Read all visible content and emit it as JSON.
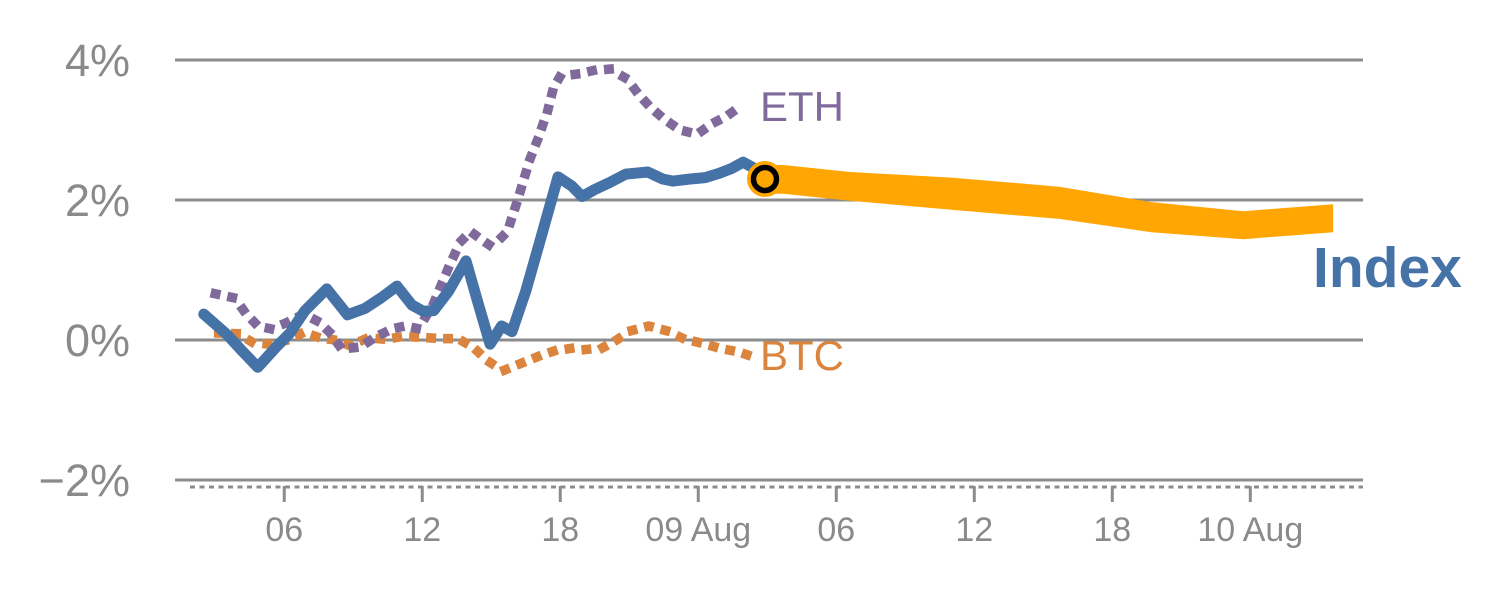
{
  "chart_data": {
    "type": "line",
    "title": "",
    "xlabel": "",
    "ylabel": "",
    "x_axis": {
      "unit": "hours since 08 Aug 00:00",
      "range": [
        1.25,
        52.9
      ],
      "axis_style": "dashed",
      "ticks": [
        {
          "t": 6,
          "label": "06"
        },
        {
          "t": 12,
          "label": "12"
        },
        {
          "t": 18,
          "label": "18"
        },
        {
          "t": 24,
          "label": "09 Aug"
        },
        {
          "t": 30,
          "label": "06"
        },
        {
          "t": 36,
          "label": "12"
        },
        {
          "t": 42,
          "label": "18"
        },
        {
          "t": 48,
          "label": "10 Aug"
        }
      ]
    },
    "y_axis": {
      "unit": "%",
      "gridlines": [
        4,
        2,
        0,
        -2
      ],
      "tick_labels": [
        "4%",
        "2%",
        "0%",
        "−2%"
      ],
      "ylim": [
        -2.3,
        4.3
      ]
    },
    "legend_position": "inline-labels",
    "grid": true,
    "series": [
      {
        "name": "BTC",
        "label": "BTC",
        "color": "#DB843D",
        "style": "dotted",
        "points": [
          [
            3.15,
            0.1
          ],
          [
            4.0,
            0.09
          ],
          [
            4.65,
            -0.04
          ],
          [
            5.4,
            -0.06
          ],
          [
            6.15,
            0.0
          ],
          [
            6.85,
            0.11
          ],
          [
            7.55,
            0.03
          ],
          [
            8.2,
            0.0
          ],
          [
            8.85,
            -0.08
          ],
          [
            9.65,
            0.03
          ],
          [
            10.4,
            0.01
          ],
          [
            11.15,
            0.05
          ],
          [
            11.9,
            0.04
          ],
          [
            12.8,
            0.02
          ],
          [
            13.55,
            0.02
          ],
          [
            14.2,
            -0.1
          ],
          [
            14.85,
            -0.3
          ],
          [
            15.5,
            -0.44
          ],
          [
            16.25,
            -0.34
          ],
          [
            17.0,
            -0.24
          ],
          [
            17.7,
            -0.16
          ],
          [
            18.45,
            -0.12
          ],
          [
            19.0,
            -0.14
          ],
          [
            19.85,
            -0.11
          ],
          [
            20.4,
            -0.01
          ],
          [
            21.05,
            0.13
          ],
          [
            21.85,
            0.2
          ],
          [
            22.65,
            0.13
          ],
          [
            23.35,
            0.02
          ],
          [
            24.2,
            -0.05
          ],
          [
            24.95,
            -0.12
          ],
          [
            25.75,
            -0.17
          ],
          [
            26.55,
            -0.26
          ]
        ]
      },
      {
        "name": "ETH",
        "label": "ETH",
        "color": "#80699B",
        "style": "dotted",
        "points": [
          [
            3.0,
            0.66
          ],
          [
            3.85,
            0.6
          ],
          [
            4.3,
            0.39
          ],
          [
            4.85,
            0.2
          ],
          [
            5.4,
            0.16
          ],
          [
            6.05,
            0.24
          ],
          [
            6.85,
            0.37
          ],
          [
            7.5,
            0.26
          ],
          [
            8.0,
            0.1
          ],
          [
            8.5,
            -0.13
          ],
          [
            9.3,
            -0.1
          ],
          [
            10.0,
            0.05
          ],
          [
            10.7,
            0.16
          ],
          [
            11.25,
            0.2
          ],
          [
            11.85,
            0.16
          ],
          [
            12.5,
            0.53
          ],
          [
            13.15,
            1.04
          ],
          [
            13.65,
            1.4
          ],
          [
            14.1,
            1.55
          ],
          [
            14.5,
            1.45
          ],
          [
            14.95,
            1.35
          ],
          [
            15.4,
            1.45
          ],
          [
            15.7,
            1.55
          ],
          [
            16.15,
            2.0
          ],
          [
            16.45,
            2.33
          ],
          [
            16.7,
            2.6
          ],
          [
            17.0,
            2.85
          ],
          [
            17.45,
            3.27
          ],
          [
            17.7,
            3.6
          ],
          [
            18.0,
            3.77
          ],
          [
            18.75,
            3.8
          ],
          [
            19.45,
            3.85
          ],
          [
            20.15,
            3.87
          ],
          [
            20.9,
            3.73
          ],
          [
            21.4,
            3.51
          ],
          [
            21.9,
            3.33
          ],
          [
            22.5,
            3.16
          ],
          [
            23.2,
            3.0
          ],
          [
            23.95,
            2.94
          ],
          [
            24.6,
            3.09
          ],
          [
            25.25,
            3.2
          ],
          [
            25.95,
            3.37
          ]
        ]
      },
      {
        "name": "Index",
        "label": "Index",
        "color": "#4572A7",
        "style": "solid",
        "points": [
          [
            2.5,
            0.37
          ],
          [
            3.5,
            0.08
          ],
          [
            4.15,
            -0.15
          ],
          [
            4.85,
            -0.39
          ],
          [
            5.65,
            -0.1
          ],
          [
            6.25,
            0.1
          ],
          [
            6.9,
            0.42
          ],
          [
            7.85,
            0.73
          ],
          [
            8.75,
            0.36
          ],
          [
            9.5,
            0.45
          ],
          [
            10.2,
            0.6
          ],
          [
            10.9,
            0.77
          ],
          [
            11.55,
            0.5
          ],
          [
            12.05,
            0.41
          ],
          [
            12.5,
            0.42
          ],
          [
            13.15,
            0.7
          ],
          [
            13.9,
            1.13
          ],
          [
            14.45,
            0.5
          ],
          [
            14.95,
            -0.06
          ],
          [
            15.45,
            0.2
          ],
          [
            15.9,
            0.12
          ],
          [
            16.5,
            0.7
          ],
          [
            17.15,
            1.45
          ],
          [
            17.9,
            2.33
          ],
          [
            18.5,
            2.2
          ],
          [
            18.95,
            2.05
          ],
          [
            19.5,
            2.15
          ],
          [
            20.15,
            2.25
          ],
          [
            20.85,
            2.37
          ],
          [
            21.8,
            2.4
          ],
          [
            22.45,
            2.3
          ],
          [
            22.9,
            2.27
          ],
          [
            23.65,
            2.3
          ],
          [
            24.3,
            2.32
          ],
          [
            24.9,
            2.38
          ],
          [
            25.45,
            2.45
          ],
          [
            25.95,
            2.54
          ],
          [
            26.45,
            2.45
          ],
          [
            26.9,
            2.3
          ]
        ]
      }
    ],
    "forecast": {
      "name": "Index forecast band",
      "color": "#FFA602",
      "points_t_upper_lower": [
        [
          26.9,
          2.5,
          2.09
        ],
        [
          27.7,
          2.5,
          2.09
        ],
        [
          30.6,
          2.4,
          1.99
        ],
        [
          35.0,
          2.32,
          1.86
        ],
        [
          39.7,
          2.19,
          1.73
        ],
        [
          43.7,
          1.97,
          1.54
        ],
        [
          47.7,
          1.84,
          1.44
        ],
        [
          51.6,
          1.94,
          1.54
        ]
      ]
    },
    "marker": {
      "t": 26.9,
      "v": 2.3,
      "fill": "#FFA602",
      "ring_color": "#000000"
    }
  },
  "labels": {
    "eth": "ETH",
    "btc": "BTC",
    "index": "Index"
  },
  "colors": {
    "index_line": "#4572A7",
    "eth_line": "#80699B",
    "btc_line": "#DB843D",
    "forecast_band": "#FFA602",
    "marker_ring": "#000000",
    "gridline": "#8c8c8c",
    "axis_text": "#8a8a8a",
    "background": "#ffffff"
  }
}
